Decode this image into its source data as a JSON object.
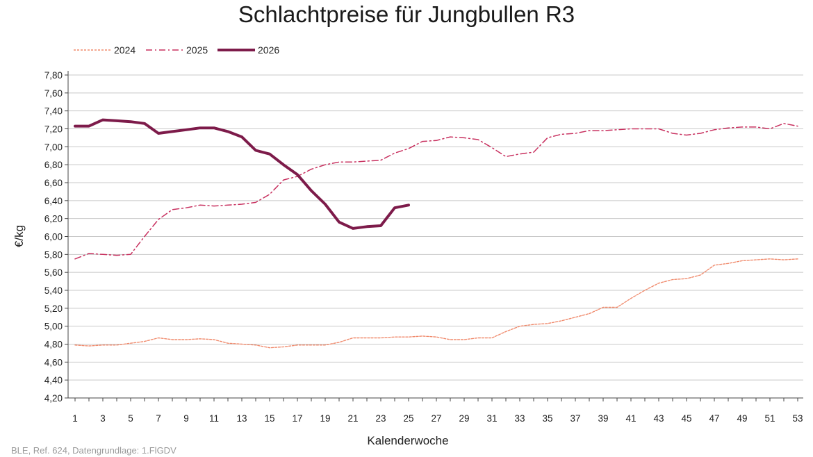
{
  "chart_data": {
    "type": "line",
    "title": "Schlachtpreise für Jungbullen R3",
    "xlabel": "Kalenderwoche",
    "ylabel": "€/kg",
    "ylim": [
      4.2,
      7.8
    ],
    "xlim": [
      1,
      53
    ],
    "y_ticks": [
      "4,20",
      "4,40",
      "4,60",
      "4,80",
      "5,00",
      "5,20",
      "5,40",
      "5,60",
      "5,80",
      "6,00",
      "6,20",
      "6,40",
      "6,60",
      "6,80",
      "7,00",
      "7,20",
      "7,40",
      "7,60",
      "7,80"
    ],
    "x_ticks": [
      "1",
      "3",
      "5",
      "7",
      "9",
      "11",
      "13",
      "15",
      "17",
      "19",
      "21",
      "23",
      "25",
      "27",
      "29",
      "31",
      "33",
      "35",
      "37",
      "39",
      "41",
      "43",
      "45",
      "47",
      "49",
      "51",
      "53"
    ],
    "grid": "horizontal",
    "legend_position": "top-left",
    "series": [
      {
        "name": "2024",
        "color": "#f08a6c",
        "style": "dotted",
        "values": [
          4.79,
          4.78,
          4.79,
          4.79,
          4.81,
          4.83,
          4.87,
          4.85,
          4.85,
          4.86,
          4.85,
          4.81,
          4.8,
          4.79,
          4.76,
          4.77,
          4.79,
          4.79,
          4.79,
          4.82,
          4.87,
          4.87,
          4.87,
          4.88,
          4.88,
          4.89,
          4.88,
          4.85,
          4.85,
          4.87,
          4.87,
          4.94,
          5.0,
          5.02,
          5.03,
          5.06,
          5.1,
          5.14,
          5.21,
          5.21,
          5.31,
          5.4,
          5.48,
          5.52,
          5.53,
          5.57,
          5.68,
          5.7,
          5.73,
          5.74,
          5.75,
          5.74,
          5.75
        ]
      },
      {
        "name": "2025",
        "color": "#c8305f",
        "style": "dashdot",
        "values": [
          5.75,
          5.81,
          5.8,
          5.79,
          5.8,
          6.0,
          6.19,
          6.3,
          6.32,
          6.35,
          6.34,
          6.35,
          6.36,
          6.38,
          6.47,
          6.63,
          6.67,
          6.75,
          6.8,
          6.83,
          6.83,
          6.84,
          6.85,
          6.93,
          6.98,
          7.06,
          7.07,
          7.11,
          7.1,
          7.08,
          6.99,
          6.89,
          6.92,
          6.94,
          7.1,
          7.14,
          7.15,
          7.18,
          7.18,
          7.19,
          7.2,
          7.2,
          7.2,
          7.15,
          7.13,
          7.15,
          7.19,
          7.21,
          7.22,
          7.22,
          7.2,
          7.26,
          7.23
        ]
      },
      {
        "name": "2026",
        "color": "#7d1b4a",
        "style": "solid",
        "values": [
          7.23,
          7.23,
          7.3,
          7.29,
          7.28,
          7.26,
          7.15,
          7.17,
          7.19,
          7.21,
          7.21,
          7.17,
          7.11,
          6.96,
          6.92,
          6.8,
          6.69,
          6.51,
          6.36,
          6.16,
          6.09,
          6.11,
          6.12,
          6.32,
          6.35
        ]
      }
    ]
  },
  "footer": {
    "source": "BLE, Ref. 624, Datengrundlage: 1.FlGDV"
  }
}
